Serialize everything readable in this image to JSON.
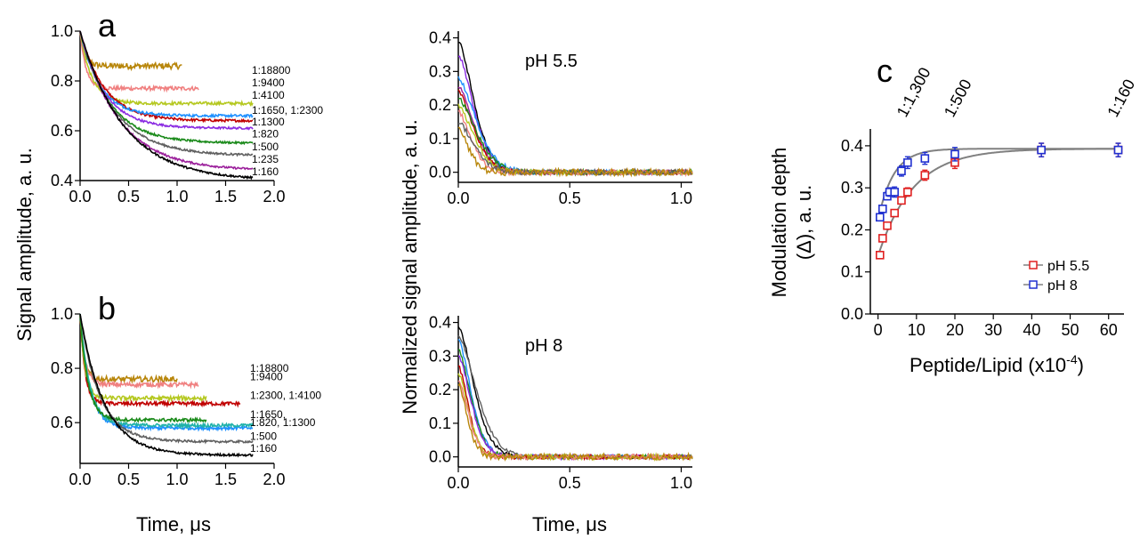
{
  "figure": {
    "shared_ylabel_left": "Signal amplitude, a. u.",
    "shared_ylabel_mid": "Normalized signal amplitude, a. u.",
    "xlabel_a": "Time, μs",
    "xlabel_mid": "Time, μs"
  },
  "colors": {
    "gold": "#b8860b",
    "salmon": "#f08080",
    "yellowgreen": "#b5c820",
    "red": "#c00000",
    "blue": "#1e90ff",
    "purple": "#8a2be2",
    "green": "#1a8a1a",
    "gray": "#606060",
    "magenta": "#9b1f9b",
    "black": "#000000",
    "teal": "#20b2aa",
    "fitgray": "#808080",
    "ph55": "#e02020",
    "ph8": "#2030d0"
  },
  "chart_data": [
    {
      "id": "panel-a",
      "type": "line",
      "panel_label": "a",
      "xlabel": "",
      "ylabel": "Signal amplitude, a. u.",
      "xlim": [
        0,
        2.0
      ],
      "ylim": [
        0.4,
        1.0
      ],
      "xticks": [
        "0.0",
        "0.5",
        "1.0",
        "1.5",
        "2.0"
      ],
      "yticks": [
        "0.4",
        "0.6",
        "0.8",
        "1.0"
      ],
      "series": [
        {
          "name": "1:18800",
          "color": "gold",
          "end": 1.05,
          "plateau": 0.86,
          "amp": 0.14,
          "tau": 0.05,
          "noise": 0.012
        },
        {
          "name": "1:9400",
          "color": "salmon",
          "end": 1.22,
          "plateau": 0.77,
          "amp": 0.23,
          "tau": 0.06,
          "noise": 0.008
        },
        {
          "name": "1:4100",
          "color": "yellowgreen",
          "end": 1.78,
          "plateau": 0.71,
          "amp": 0.29,
          "tau": 0.12,
          "noise": 0.006
        },
        {
          "name": "1:1650, 1:2300",
          "color": "red",
          "end": 1.78,
          "plateau": 0.64,
          "amp": 0.36,
          "tau": 0.25,
          "noise": 0.005
        },
        {
          "name": "",
          "color": "blue",
          "end": 1.78,
          "plateau": 0.66,
          "amp": 0.34,
          "tau": 0.2,
          "noise": 0.005
        },
        {
          "name": "1:1300",
          "color": "purple",
          "end": 1.78,
          "plateau": 0.61,
          "amp": 0.39,
          "tau": 0.25,
          "noise": 0.004
        },
        {
          "name": "1:820",
          "color": "green",
          "end": 1.78,
          "plateau": 0.55,
          "amp": 0.45,
          "tau": 0.3,
          "noise": 0.004
        },
        {
          "name": "1:500",
          "color": "gray",
          "end": 1.78,
          "plateau": 0.5,
          "amp": 0.5,
          "tau": 0.35,
          "noise": 0.004
        },
        {
          "name": "1:235",
          "color": "magenta",
          "end": 1.78,
          "plateau": 0.44,
          "amp": 0.56,
          "tau": 0.4,
          "noise": 0.004
        },
        {
          "name": "1:160",
          "color": "black",
          "end": 1.78,
          "plateau": 0.4,
          "amp": 0.6,
          "tau": 0.45,
          "noise": 0.004
        }
      ],
      "ratio_labels": [
        "1:18800",
        "1:9400",
        "1:4100",
        "1:1650, 1:2300",
        "1:1300",
        "1:820",
        "1:500",
        "1:235",
        "1:160"
      ],
      "ratio_label_values": [
        0.843,
        0.792,
        0.743,
        0.683,
        0.635,
        0.587,
        0.535,
        0.485,
        0.435
      ]
    },
    {
      "id": "panel-b",
      "type": "line",
      "panel_label": "b",
      "xlabel": "Time, μs",
      "ylabel": "",
      "xlim": [
        0,
        2.0
      ],
      "ylim": [
        0.45,
        1.0
      ],
      "xticks": [
        "0.0",
        "0.5",
        "1.0",
        "1.5",
        "2.0"
      ],
      "yticks": [
        "0.6",
        "0.8",
        "1.0"
      ],
      "series": [
        {
          "name": "1:18800",
          "color": "gold",
          "end": 1.0,
          "plateau": 0.76,
          "amp": 0.24,
          "tau": 0.04,
          "noise": 0.01
        },
        {
          "name": "1:9400",
          "color": "salmon",
          "end": 1.22,
          "plateau": 0.74,
          "amp": 0.26,
          "tau": 0.05,
          "noise": 0.008
        },
        {
          "name": "1:2300, 1:4100",
          "color": "red",
          "end": 1.65,
          "plateau": 0.67,
          "amp": 0.33,
          "tau": 0.05,
          "noise": 0.007
        },
        {
          "name": "",
          "color": "yellowgreen",
          "end": 1.3,
          "plateau": 0.69,
          "amp": 0.31,
          "tau": 0.05,
          "noise": 0.008
        },
        {
          "name": "1:1650, 1:820, 1:1300",
          "color": "blue",
          "end": 1.78,
          "plateau": 0.58,
          "amp": 0.42,
          "tau": 0.1,
          "noise": 0.006
        },
        {
          "name": "",
          "color": "teal",
          "end": 1.78,
          "plateau": 0.59,
          "amp": 0.41,
          "tau": 0.1,
          "noise": 0.006
        },
        {
          "name": "",
          "color": "green",
          "end": 1.3,
          "plateau": 0.61,
          "amp": 0.39,
          "tau": 0.08,
          "noise": 0.006
        },
        {
          "name": "1:500",
          "color": "gray",
          "end": 1.78,
          "plateau": 0.53,
          "amp": 0.47,
          "tau": 0.2,
          "noise": 0.004
        },
        {
          "name": "1:160",
          "color": "black",
          "end": 1.78,
          "plateau": 0.48,
          "amp": 0.52,
          "tau": 0.25,
          "noise": 0.004
        }
      ],
      "ratio_labels": [
        "1:18800",
        "1:9400",
        "1:2300, 1:4100",
        "1:1650,",
        "1:820, 1:1300",
        "1:500",
        "1:160"
      ],
      "ratio_label_values": [
        0.8,
        0.77,
        0.7,
        0.63,
        0.6,
        0.55,
        0.505
      ]
    },
    {
      "id": "panel-mid-top",
      "type": "line",
      "title": "pH 5.5",
      "xlabel": "",
      "ylabel": "",
      "xlim": [
        0,
        1.05
      ],
      "ylim": [
        -0.03,
        0.42
      ],
      "xticks": [
        "0.0",
        "0.5",
        "1.0"
      ],
      "yticks": [
        "0.0",
        "0.1",
        "0.2",
        "0.3",
        "0.4"
      ],
      "series": [
        {
          "color": "black",
          "peak": 0.39,
          "tau": 0.06,
          "noise": 0.006
        },
        {
          "color": "purple",
          "peak": 0.35,
          "tau": 0.06,
          "noise": 0.006
        },
        {
          "color": "blue",
          "peak": 0.28,
          "tau": 0.07,
          "noise": 0.007
        },
        {
          "color": "magenta",
          "peak": 0.26,
          "tau": 0.06,
          "noise": 0.007
        },
        {
          "color": "red",
          "peak": 0.24,
          "tau": 0.06,
          "noise": 0.007
        },
        {
          "color": "green",
          "peak": 0.22,
          "tau": 0.07,
          "noise": 0.007
        },
        {
          "color": "yellowgreen",
          "peak": 0.2,
          "tau": 0.06,
          "noise": 0.008
        },
        {
          "color": "salmon",
          "peak": 0.18,
          "tau": 0.05,
          "noise": 0.008
        },
        {
          "color": "gray",
          "peak": 0.15,
          "tau": 0.06,
          "noise": 0.008
        },
        {
          "color": "gold",
          "peak": 0.13,
          "tau": 0.04,
          "noise": 0.01
        }
      ]
    },
    {
      "id": "panel-mid-bottom",
      "type": "line",
      "title": "pH 8",
      "xlabel": "Time, μs",
      "ylabel": "",
      "xlim": [
        0,
        1.05
      ],
      "ylim": [
        -0.03,
        0.42
      ],
      "xticks": [
        "0.0",
        "0.5",
        "1.0"
      ],
      "yticks": [
        "0.0",
        "0.1",
        "0.2",
        "0.3",
        "0.4"
      ],
      "series": [
        {
          "color": "black",
          "peak": 0.39,
          "tau": 0.06,
          "noise": 0.005
        },
        {
          "color": "gray",
          "peak": 0.36,
          "tau": 0.07,
          "noise": 0.005
        },
        {
          "color": "blue",
          "peak": 0.35,
          "tau": 0.05,
          "noise": 0.006
        },
        {
          "color": "green",
          "peak": 0.32,
          "tau": 0.05,
          "noise": 0.006
        },
        {
          "color": "purple",
          "peak": 0.3,
          "tau": 0.05,
          "noise": 0.007
        },
        {
          "color": "red",
          "peak": 0.27,
          "tau": 0.04,
          "noise": 0.007
        },
        {
          "color": "yellowgreen",
          "peak": 0.25,
          "tau": 0.04,
          "noise": 0.008
        },
        {
          "color": "salmon",
          "peak": 0.23,
          "tau": 0.04,
          "noise": 0.008
        },
        {
          "color": "gold",
          "peak": 0.22,
          "tau": 0.035,
          "noise": 0.009
        }
      ]
    },
    {
      "id": "panel-c",
      "type": "scatter",
      "panel_label": "c",
      "xlabel": "Peptide/Lipid (x10",
      "xlabel_sup": "-4",
      "xlabel_suffix": ")",
      "ylabel": "Modulation depth",
      "ylabel_line2": "(Δ), a. u.",
      "xlim": [
        -2,
        64
      ],
      "ylim": [
        0.0,
        0.44
      ],
      "xticks": [
        "0",
        "10",
        "20",
        "30",
        "40",
        "50",
        "60"
      ],
      "xtick_values": [
        0,
        10,
        20,
        30,
        40,
        50,
        60
      ],
      "yticks": [
        "0.0",
        "0.1",
        "0.2",
        "0.3",
        "0.4"
      ],
      "ytick_values": [
        0.0,
        0.1,
        0.2,
        0.3,
        0.4
      ],
      "annotations": [
        {
          "text": "1:1,300",
          "x": 7.7
        },
        {
          "text": "1:500",
          "x": 20
        },
        {
          "text": "1:160",
          "x": 62.5
        }
      ],
      "series": [
        {
          "name": "pH 5.5",
          "color": "ph55",
          "points": [
            [
              0.5,
              0.14
            ],
            [
              1.2,
              0.18
            ],
            [
              2.4,
              0.21
            ],
            [
              4.3,
              0.24
            ],
            [
              6.1,
              0.27
            ],
            [
              7.7,
              0.29
            ],
            [
              12.2,
              0.33
            ],
            [
              20.0,
              0.36
            ],
            [
              42.5,
              0.39
            ],
            [
              62.5,
              0.39
            ]
          ],
          "err": [
            0.006,
            0.006,
            0.006,
            0.008,
            0.008,
            0.01,
            0.012,
            0.014,
            0.016,
            0.016
          ],
          "fit": {
            "a": 0.393,
            "b": 0.255,
            "k": 0.11
          }
        },
        {
          "name": "pH 8",
          "color": "ph8",
          "points": [
            [
              0.5,
              0.23
            ],
            [
              1.2,
              0.25
            ],
            [
              2.4,
              0.28
            ],
            [
              3.0,
              0.29
            ],
            [
              4.3,
              0.29
            ],
            [
              6.1,
              0.34
            ],
            [
              7.7,
              0.36
            ],
            [
              12.2,
              0.37
            ],
            [
              20.0,
              0.38
            ],
            [
              42.5,
              0.39
            ],
            [
              62.5,
              0.39
            ]
          ],
          "err": [
            0.008,
            0.008,
            0.008,
            0.01,
            0.012,
            0.012,
            0.014,
            0.014,
            0.016,
            0.016,
            0.016
          ],
          "fit": {
            "a": 0.393,
            "b": 0.17,
            "k": 0.25
          }
        }
      ],
      "legend_position": "lower-right"
    }
  ]
}
